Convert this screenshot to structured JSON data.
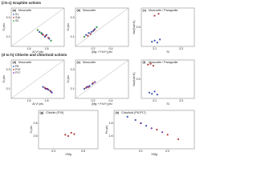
{
  "sections": [
    "(i-b-c) Graphite schists",
    "(d to h) Chlorite and chloritoid schists"
  ],
  "chart_data": [
    {
      "type": "scatter",
      "label": "(a)",
      "title": "Muscovite",
      "xlabel": "Al VI pfu",
      "ylabel": "Si pfu",
      "xlim": [
        1.4,
        2.0
      ],
      "ylim": [
        3.0,
        3.4
      ],
      "xticks": [
        1.6,
        1.8
      ],
      "yticks": [
        3.1,
        3.3
      ],
      "series": [
        {
          "name": "S1",
          "color": "#3b5bd6",
          "x": [
            1.72,
            1.75,
            1.78,
            1.8,
            1.83
          ],
          "y": [
            3.15,
            3.13,
            3.1,
            3.12,
            3.08
          ]
        },
        {
          "name": "S1b",
          "color": "#d63b3b",
          "x": [
            1.76,
            1.79,
            1.82
          ],
          "y": [
            3.12,
            3.11,
            3.09
          ]
        },
        {
          "name": "S2",
          "color": "#2fae4a",
          "x": [
            1.7,
            1.74,
            1.85
          ],
          "y": [
            3.17,
            3.14,
            3.06
          ]
        }
      ]
    },
    {
      "type": "scatter",
      "label": "(b)",
      "title": "Muscovite",
      "xlabel": "[Mg + Fe2+] pfu",
      "ylabel": "Si pfu",
      "xlim": [
        0,
        0.6
      ],
      "ylim": [
        3.0,
        3.4
      ],
      "xticks": [
        0.2,
        0.4
      ],
      "yticks": [
        3.1,
        3.3
      ],
      "series": [
        {
          "color": "#3b5bd6",
          "x": [
            0.12,
            0.15,
            0.18,
            0.2,
            0.22
          ],
          "y": [
            3.12,
            3.14,
            3.15,
            3.16,
            3.18
          ]
        },
        {
          "color": "#d63b3b",
          "x": [
            0.14,
            0.17,
            0.21
          ],
          "y": [
            3.11,
            3.13,
            3.17
          ]
        },
        {
          "color": "#2fae4a",
          "x": [
            0.1,
            0.24
          ],
          "y": [
            3.1,
            3.2
          ]
        }
      ]
    },
    {
      "type": "scatter",
      "label": "(c)",
      "title": "Muscovite / Paragonite",
      "xlabel": "Si",
      "ylabel": "Na/(Na+K)",
      "xlim": [
        3.0,
        3.4
      ],
      "ylim": [
        0,
        1
      ],
      "xticks": [
        3.1,
        3.3
      ],
      "yticks": [
        0.5
      ],
      "series": [
        {
          "color": "#3b5bd6",
          "x": [
            3.08,
            3.1,
            3.12,
            3.14
          ],
          "y": [
            0.12,
            0.15,
            0.1,
            0.18
          ]
        },
        {
          "color": "#d63b3b",
          "x": [
            3.1,
            3.13
          ],
          "y": [
            0.8,
            0.85
          ]
        }
      ]
    },
    {
      "type": "scatter",
      "label": "(d)",
      "title": "Muscovite",
      "xlabel": "Al VI pfu",
      "ylabel": "Si pfu",
      "xlim": [
        1.4,
        2.0
      ],
      "ylim": [
        3.0,
        3.4
      ],
      "xticks": [
        1.6,
        1.8
      ],
      "yticks": [
        3.1,
        3.3
      ],
      "series": [
        {
          "name": "P8",
          "color": "#3b5bd6",
          "x": [
            1.76,
            1.79,
            1.82,
            1.85
          ],
          "y": [
            3.12,
            3.1,
            3.09,
            3.07
          ]
        },
        {
          "name": "P19",
          "color": "#d63b3b",
          "x": [
            1.78,
            1.81,
            1.84
          ],
          "y": [
            3.11,
            3.1,
            3.08
          ]
        },
        {
          "name": "P17",
          "color": "#8b3bd6",
          "x": [
            1.8,
            1.86
          ],
          "y": [
            3.1,
            3.06
          ]
        }
      ]
    },
    {
      "type": "scatter",
      "label": "(e)",
      "title": "Muscovite",
      "xlabel": "[Mg + Fe2+] pfu",
      "ylabel": "Si pfu",
      "xlim": [
        0,
        0.6
      ],
      "ylim": [
        3.0,
        3.4
      ],
      "xticks": [
        0.2,
        0.4
      ],
      "yticks": [
        3.1,
        3.3
      ],
      "series": [
        {
          "color": "#3b5bd6",
          "x": [
            0.1,
            0.13,
            0.16,
            0.19
          ],
          "y": [
            3.1,
            3.12,
            3.13,
            3.15
          ]
        },
        {
          "color": "#d63b3b",
          "x": [
            0.12,
            0.15,
            0.2
          ],
          "y": [
            3.11,
            3.12,
            3.16
          ]
        },
        {
          "color": "#8b3bd6",
          "x": [
            0.14,
            0.22
          ],
          "y": [
            3.12,
            3.17
          ]
        }
      ]
    },
    {
      "type": "scatter",
      "label": "(f)",
      "title": "Muscovite / Paragonite",
      "xlabel": "Si",
      "ylabel": "Na/(Na+K)",
      "xlim": [
        3.0,
        3.4
      ],
      "ylim": [
        0,
        1
      ],
      "xticks": [
        3.1,
        3.3
      ],
      "yticks": [
        0.5
      ],
      "series": [
        {
          "color": "#3b5bd6",
          "x": [
            3.06,
            3.08,
            3.1,
            3.12
          ],
          "y": [
            0.15,
            0.12,
            0.18,
            0.1
          ]
        },
        {
          "color": "#d63b3b",
          "x": [
            3.05,
            3.07,
            3.09
          ],
          "y": [
            0.88,
            0.9,
            0.85
          ]
        }
      ]
    },
    {
      "type": "scatter",
      "label": "(g)",
      "title": "Chlorite (P19)",
      "xlabel": "XMg",
      "ylabel": "Si pfu",
      "xlim": [
        0.2,
        0.6
      ],
      "ylim": [
        2.4,
        3.0
      ],
      "xticks": [
        0.3,
        0.5
      ],
      "yticks": [
        2.6,
        2.8
      ],
      "series": [
        {
          "color": "#d63b3b",
          "x": [
            0.38,
            0.4,
            0.42,
            0.44
          ],
          "y": [
            2.62,
            2.6,
            2.65,
            2.63
          ]
        }
      ]
    },
    {
      "type": "scatter",
      "label": "(h)",
      "title": "Chloritoid (P8-P17)",
      "xlabel": "XMg",
      "ylabel": "Fe pfu",
      "xlim": [
        0,
        0.3
      ],
      "ylim": [
        1.4,
        2.0
      ],
      "xticks": [
        0.1,
        0.2
      ],
      "yticks": [
        1.6,
        1.8
      ],
      "series": [
        {
          "color": "#3b5bd6",
          "x": [
            0.05,
            0.08,
            0.1,
            0.12
          ],
          "y": [
            1.9,
            1.85,
            1.8,
            1.76
          ]
        },
        {
          "color": "#8b3bd6",
          "x": [
            0.1,
            0.14,
            0.18
          ],
          "y": [
            1.8,
            1.72,
            1.66
          ]
        },
        {
          "color": "#d63b3b",
          "x": [
            0.16,
            0.2,
            0.24
          ],
          "y": [
            1.7,
            1.62,
            1.55
          ]
        }
      ]
    }
  ]
}
